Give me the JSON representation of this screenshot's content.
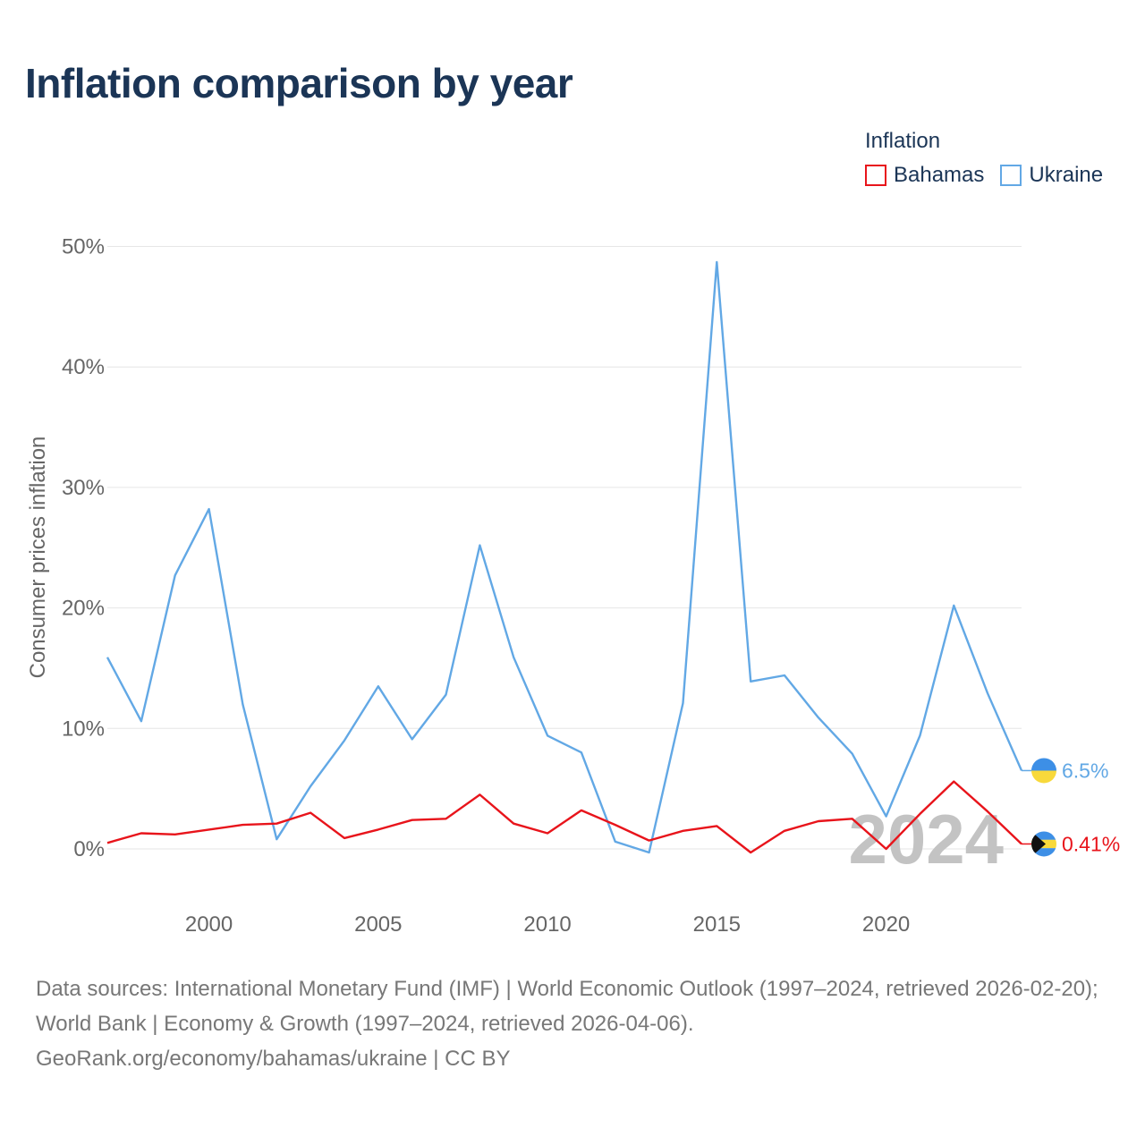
{
  "header": {
    "title": "Inflation comparison by year"
  },
  "legend": {
    "title": "Inflation",
    "items": [
      {
        "label": "Bahamas",
        "color": "#e8141b"
      },
      {
        "label": "Ukraine",
        "color": "#62a8e5"
      }
    ]
  },
  "watermark_year": "2024",
  "chart_data": {
    "type": "line",
    "title": "Inflation comparison by year",
    "xlabel": "",
    "ylabel": "Consumer prices inflation",
    "xlim": [
      1997,
      2024
    ],
    "ylim": [
      -5,
      50
    ],
    "x_ticks": [
      2000,
      2005,
      2010,
      2015,
      2020
    ],
    "y_ticks": [
      0,
      10,
      20,
      30,
      40,
      50
    ],
    "y_tick_labels": [
      "0%",
      "10%",
      "20%",
      "30%",
      "40%",
      "50%"
    ],
    "x": [
      1997,
      1998,
      1999,
      2000,
      2001,
      2002,
      2003,
      2004,
      2005,
      2006,
      2007,
      2008,
      2009,
      2010,
      2011,
      2012,
      2013,
      2014,
      2015,
      2016,
      2017,
      2018,
      2019,
      2020,
      2021,
      2022,
      2023,
      2024
    ],
    "series": [
      {
        "name": "Ukraine",
        "color": "#62a8e5",
        "values": [
          15.9,
          10.6,
          22.7,
          28.2,
          12.0,
          0.8,
          5.2,
          9.0,
          13.5,
          9.1,
          12.8,
          25.2,
          15.9,
          9.4,
          8.0,
          0.6,
          -0.3,
          12.1,
          48.7,
          13.9,
          14.4,
          10.9,
          7.9,
          2.7,
          9.4,
          20.2,
          12.9,
          6.5
        ],
        "end_label": "6.5%"
      },
      {
        "name": "Bahamas",
        "color": "#e8141b",
        "values": [
          0.5,
          1.3,
          1.2,
          1.6,
          2.0,
          2.1,
          3.0,
          0.9,
          1.6,
          2.4,
          2.5,
          4.5,
          2.1,
          1.3,
          3.2,
          2.0,
          0.7,
          1.5,
          1.9,
          -0.3,
          1.5,
          2.3,
          2.5,
          0.0,
          2.9,
          5.6,
          3.1,
          0.41
        ],
        "end_label": "0.41%"
      }
    ]
  },
  "footer": {
    "sources": "Data sources: International Monetary Fund (IMF) | World Economic Outlook (1997–2024, retrieved 2026-02-20); World Bank | Economy & Growth (1997–2024, retrieved 2026-04-06).",
    "attribution": "GeoRank.org/economy/bahamas/ukraine | CC BY"
  }
}
